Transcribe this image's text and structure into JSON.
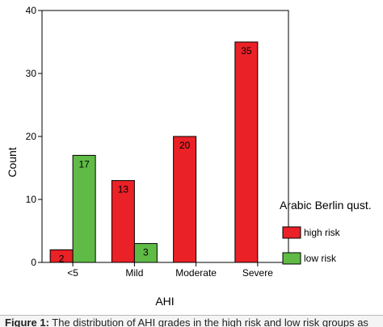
{
  "chart_data": {
    "type": "bar",
    "categories": [
      "<5",
      "Mild",
      "Moderate",
      "Severe"
    ],
    "series": [
      {
        "name": "high risk",
        "values": [
          2,
          13,
          20,
          35
        ],
        "color": "#ea2127"
      },
      {
        "name": "low risk",
        "values": [
          17,
          3,
          null,
          null
        ],
        "color": "#5fbb46"
      }
    ],
    "data_labels": [
      [
        "2",
        "13",
        "20",
        "35"
      ],
      [
        "17",
        "3",
        "",
        ""
      ]
    ],
    "xlabel": "AHI",
    "ylabel": "Count",
    "ylim": [
      0,
      40
    ],
    "yticks": [
      0,
      10,
      20,
      30,
      40
    ],
    "grid": false,
    "legend": {
      "title": "Arabic Berlin qust.",
      "position": "right"
    }
  },
  "caption": {
    "label": "Figure 1:",
    "text": " The distribution of AHI grades in the high risk and low risk groups as"
  }
}
